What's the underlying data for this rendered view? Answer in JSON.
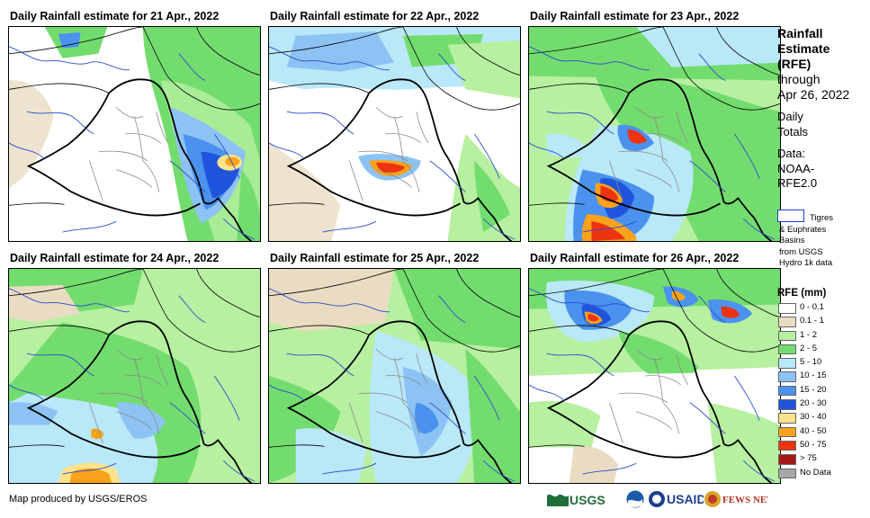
{
  "panels": [
    {
      "title": "Daily Rainfall estimate for 21 Apr., 2022"
    },
    {
      "title": "Daily Rainfall estimate for 22 Apr., 2022"
    },
    {
      "title": "Daily Rainfall estimate for 23 Apr., 2022"
    },
    {
      "title": "Daily Rainfall estimate for 24 Apr., 2022"
    },
    {
      "title": "Daily Rainfall estimate for 25 Apr., 2022"
    },
    {
      "title": "Daily Rainfall estimate for 26 Apr., 2022"
    }
  ],
  "side": {
    "title_lines": [
      "Rainfall",
      "Estimate",
      "(RFE)"
    ],
    "through": "through",
    "date": "Apr 26, 2022",
    "period_lines": [
      "Daily",
      "Totals"
    ],
    "data_lines": [
      "Data:",
      "NOAA-",
      "RFE2.0"
    ],
    "basin_lines": [
      "Tigres",
      "& Euphrates",
      "Basins",
      "from USGS",
      "Hydro 1k data"
    ]
  },
  "legend": {
    "title": "RFE (mm)",
    "items": [
      {
        "label": "0 - 0.1",
        "color": "#ffffff"
      },
      {
        "label": "0.1 - 1",
        "color": "#eadcc2"
      },
      {
        "label": "1 - 2",
        "color": "#b7f0a0"
      },
      {
        "label": "2 - 5",
        "color": "#73dc6e"
      },
      {
        "label": "5 - 10",
        "color": "#b9e8f8"
      },
      {
        "label": "10 - 15",
        "color": "#8cc3f4"
      },
      {
        "label": "15 - 20",
        "color": "#4b92ee"
      },
      {
        "label": "20 - 30",
        "color": "#1f55dd"
      },
      {
        "label": "30 - 40",
        "color": "#fde38a"
      },
      {
        "label": "40 - 50",
        "color": "#f9a21a"
      },
      {
        "label": "50 - 75",
        "color": "#ee3311"
      },
      {
        "label": "> 75",
        "color": "#a51818"
      },
      {
        "label": "No Data",
        "color": "#a7a7a7"
      }
    ]
  },
  "footer": {
    "credit": "Map produced by USGS/EROS",
    "logos": [
      "USGS",
      "NOAA",
      "USAID",
      "FEWS NET"
    ]
  }
}
